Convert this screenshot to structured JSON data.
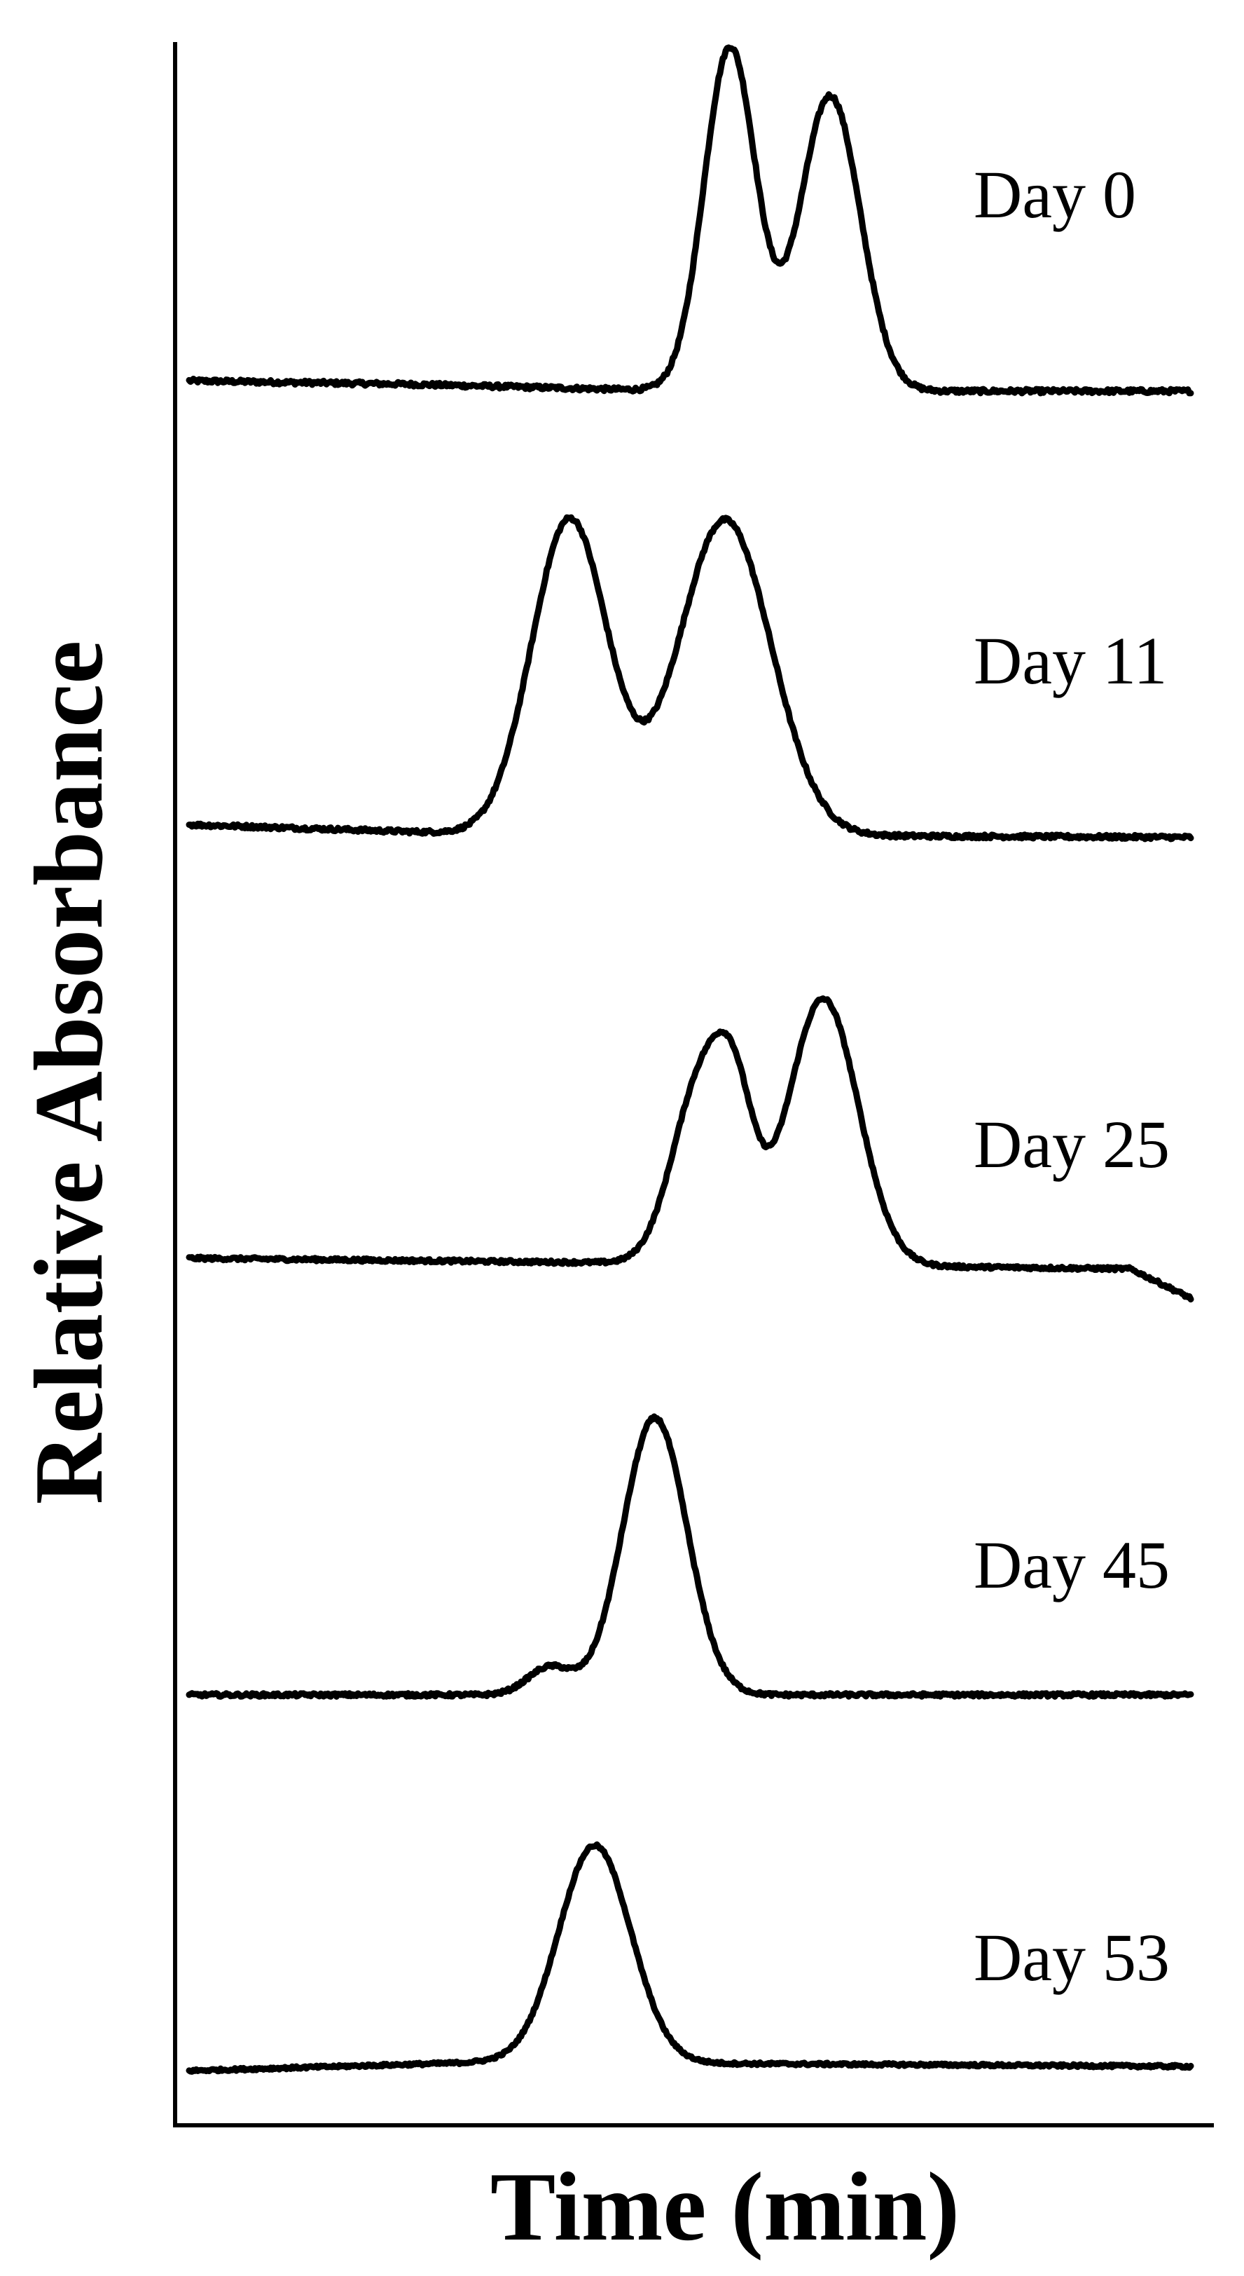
{
  "chart_data": {
    "type": "line",
    "xlabel": "Time (min)",
    "ylabel": "Relative Absorbance",
    "grid": false,
    "legend": "none",
    "xlim": [
      0,
      100
    ],
    "x_ticks": "none",
    "y_ticks": "none",
    "note": "Stacked chromatogram traces; y values are relative peak heights above each trace baseline (0 to 1). Each trace is labelled at the right.",
    "series": [
      {
        "name": "Day 0",
        "baseline": 0,
        "peaks": [
          {
            "center": 54,
            "height": 1.0,
            "width": 2.6
          },
          {
            "center": 64,
            "height": 0.86,
            "width": 3.0
          }
        ],
        "baseline_shape": [
          [
            0,
            0.03
          ],
          [
            22,
            0.02
          ],
          [
            50,
            0.0
          ],
          [
            100,
            0.0
          ]
        ]
      },
      {
        "name": "Day 11",
        "baseline": 0,
        "peaks": [
          {
            "center": 38,
            "height": 1.0,
            "width": 3.8
          },
          {
            "center": 53.5,
            "height": 1.0,
            "width": 4.6
          }
        ],
        "baseline_shape": [
          [
            0,
            0.03
          ],
          [
            30,
            0.0
          ],
          [
            100,
            -0.01
          ]
        ]
      },
      {
        "name": "Day 25",
        "baseline": 0,
        "peaks": [
          {
            "center": 51,
            "height": 0.66,
            "width": 2.8
          },
          {
            "center": 54.5,
            "height": 0.46,
            "width": 2.0
          },
          {
            "center": 63.3,
            "height": 1.0,
            "width": 3.5
          }
        ],
        "baseline_shape": [
          [
            0,
            0.0
          ],
          [
            50,
            -0.02
          ],
          [
            94,
            -0.04
          ],
          [
            100,
            -0.15
          ]
        ]
      },
      {
        "name": "Day 45",
        "baseline": 0,
        "peaks": [
          {
            "center": 36,
            "height": 0.1,
            "width": 2.2
          },
          {
            "center": 46.5,
            "height": 1.0,
            "width": 3.2
          }
        ],
        "baseline_shape": [
          [
            0,
            0.0
          ],
          [
            100,
            0.0
          ]
        ]
      },
      {
        "name": "Day 53",
        "baseline": 0,
        "peaks": [
          {
            "center": 40.5,
            "height": 1.0,
            "width": 3.6
          }
        ],
        "baseline_shape": [
          [
            0,
            -0.02
          ],
          [
            30,
            0.02
          ],
          [
            100,
            0.0
          ]
        ]
      }
    ]
  }
}
